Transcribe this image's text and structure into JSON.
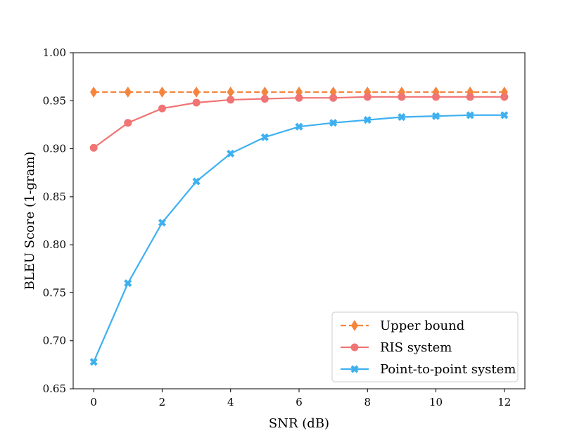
{
  "chart_data": {
    "type": "line",
    "title": "",
    "xlabel": "SNR (dB)",
    "ylabel": "BLEU Score (1-gram)",
    "xlim": [
      -0.6,
      12.6
    ],
    "ylim": [
      0.65,
      1.0
    ],
    "xticks": [
      0,
      2,
      4,
      6,
      8,
      10,
      12
    ],
    "xtick_labels": [
      "0",
      "2",
      "4",
      "6",
      "8",
      "10",
      "12"
    ],
    "yticks": [
      0.65,
      0.7,
      0.75,
      0.8,
      0.85,
      0.9,
      0.95,
      1.0
    ],
    "ytick_labels": [
      "0.65",
      "0.70",
      "0.75",
      "0.80",
      "0.85",
      "0.90",
      "0.95",
      "1.00"
    ],
    "grid": false,
    "legend_position": "bottom-right",
    "x": [
      0,
      1,
      2,
      3,
      4,
      5,
      6,
      7,
      8,
      9,
      10,
      11,
      12
    ],
    "series": [
      {
        "name": "Upper bound",
        "color": "#f5853d",
        "marker": "diamond",
        "linestyle": "dashed",
        "values": [
          0.959,
          0.959,
          0.959,
          0.959,
          0.959,
          0.959,
          0.959,
          0.959,
          0.959,
          0.959,
          0.959,
          0.959,
          0.959
        ]
      },
      {
        "name": "RIS system",
        "color": "#f07474",
        "marker": "circle",
        "linestyle": "solid",
        "values": [
          0.901,
          0.927,
          0.942,
          0.948,
          0.951,
          0.952,
          0.953,
          0.953,
          0.954,
          0.954,
          0.954,
          0.954,
          0.954
        ]
      },
      {
        "name": "Point-to-point system",
        "color": "#3eb0f0",
        "marker": "x",
        "linestyle": "solid",
        "values": [
          0.678,
          0.76,
          0.823,
          0.866,
          0.895,
          0.912,
          0.923,
          0.927,
          0.93,
          0.933,
          0.934,
          0.935,
          0.935
        ]
      }
    ]
  }
}
